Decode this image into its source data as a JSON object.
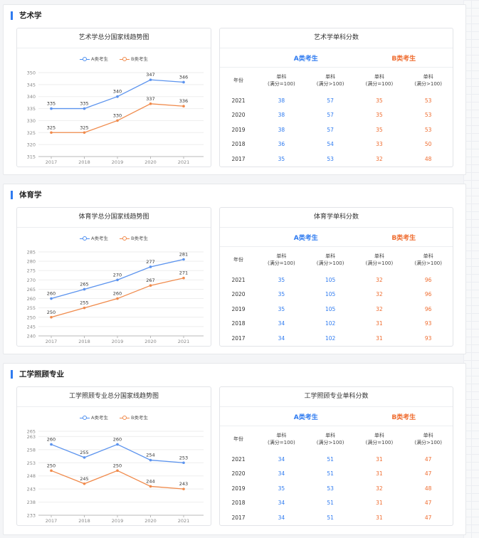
{
  "colors": {
    "seriesA": "#5b93ee",
    "seriesB": "#f08a4b",
    "accent": "#2f7bf0"
  },
  "legend": {
    "a": "A类考生",
    "b": "B类考生"
  },
  "table_labels": {
    "group_a": "A类考生",
    "group_b": "B类考生",
    "year": "年份",
    "subject": "单科",
    "full_lt": "(满分=100)",
    "full_gt": "(满分>100)"
  },
  "sections": [
    {
      "title": "艺术学",
      "table_title": "艺术学单科分数",
      "rows": [
        {
          "year": "2021",
          "a1": "38",
          "a2": "57",
          "b1": "35",
          "b2": "53"
        },
        {
          "year": "2020",
          "a1": "38",
          "a2": "57",
          "b1": "35",
          "b2": "53"
        },
        {
          "year": "2019",
          "a1": "38",
          "a2": "57",
          "b1": "35",
          "b2": "53"
        },
        {
          "year": "2018",
          "a1": "36",
          "a2": "54",
          "b1": "33",
          "b2": "50"
        },
        {
          "year": "2017",
          "a1": "35",
          "a2": "53",
          "b1": "32",
          "b2": "48"
        }
      ]
    },
    {
      "title": "体育学",
      "table_title": "体育学单科分数",
      "rows": [
        {
          "year": "2021",
          "a1": "35",
          "a2": "105",
          "b1": "32",
          "b2": "96"
        },
        {
          "year": "2020",
          "a1": "35",
          "a2": "105",
          "b1": "32",
          "b2": "96"
        },
        {
          "year": "2019",
          "a1": "35",
          "a2": "105",
          "b1": "32",
          "b2": "96"
        },
        {
          "year": "2018",
          "a1": "34",
          "a2": "102",
          "b1": "31",
          "b2": "93"
        },
        {
          "year": "2017",
          "a1": "34",
          "a2": "102",
          "b1": "31",
          "b2": "93"
        }
      ]
    },
    {
      "title": "工学照顾专业",
      "table_title": "工学照顾专业单科分数",
      "rows": [
        {
          "year": "2021",
          "a1": "34",
          "a2": "51",
          "b1": "31",
          "b2": "47"
        },
        {
          "year": "2020",
          "a1": "34",
          "a2": "51",
          "b1": "31",
          "b2": "47"
        },
        {
          "year": "2019",
          "a1": "35",
          "a2": "53",
          "b1": "32",
          "b2": "48"
        },
        {
          "year": "2018",
          "a1": "34",
          "a2": "51",
          "b1": "31",
          "b2": "47"
        },
        {
          "year": "2017",
          "a1": "34",
          "a2": "51",
          "b1": "31",
          "b2": "47"
        }
      ]
    }
  ],
  "chart_data": [
    {
      "type": "line",
      "title": "艺术学总分国家线趋势图",
      "categories": [
        "2017",
        "2018",
        "2019",
        "2020",
        "2021"
      ],
      "series": [
        {
          "name": "A类考生",
          "values": [
            335,
            335,
            340,
            347,
            346
          ]
        },
        {
          "name": "B类考生",
          "values": [
            325,
            325,
            330,
            337,
            336
          ]
        }
      ],
      "ylim": [
        315,
        350
      ],
      "yticks": [
        315,
        320,
        325,
        330,
        335,
        340,
        345,
        350
      ],
      "legend": "top-center",
      "grid": true
    },
    {
      "type": "line",
      "title": "体育学总分国家线趋势图",
      "categories": [
        "2017",
        "2018",
        "2019",
        "2020",
        "2021"
      ],
      "series": [
        {
          "name": "A类考生",
          "values": [
            260,
            265,
            270,
            277,
            281
          ]
        },
        {
          "name": "B类考生",
          "values": [
            250,
            255,
            260,
            267,
            271
          ]
        }
      ],
      "ylim": [
        240,
        285
      ],
      "yticks": [
        240,
        245,
        250,
        255,
        260,
        265,
        270,
        275,
        280,
        285
      ],
      "legend": "top-center",
      "grid": true
    },
    {
      "type": "line",
      "title": "工学照顾专业总分国家线趋势图",
      "categories": [
        "2017",
        "2018",
        "2019",
        "2020",
        "2021"
      ],
      "series": [
        {
          "name": "A类考生",
          "values": [
            260,
            255,
            260,
            254,
            253
          ]
        },
        {
          "name": "B类考生",
          "values": [
            250,
            245,
            250,
            244,
            243
          ]
        }
      ],
      "ylim": [
        233,
        265
      ],
      "yticks": [
        233,
        238,
        243,
        248,
        253,
        258,
        263,
        265
      ],
      "legend": "top-center",
      "grid": true
    }
  ]
}
